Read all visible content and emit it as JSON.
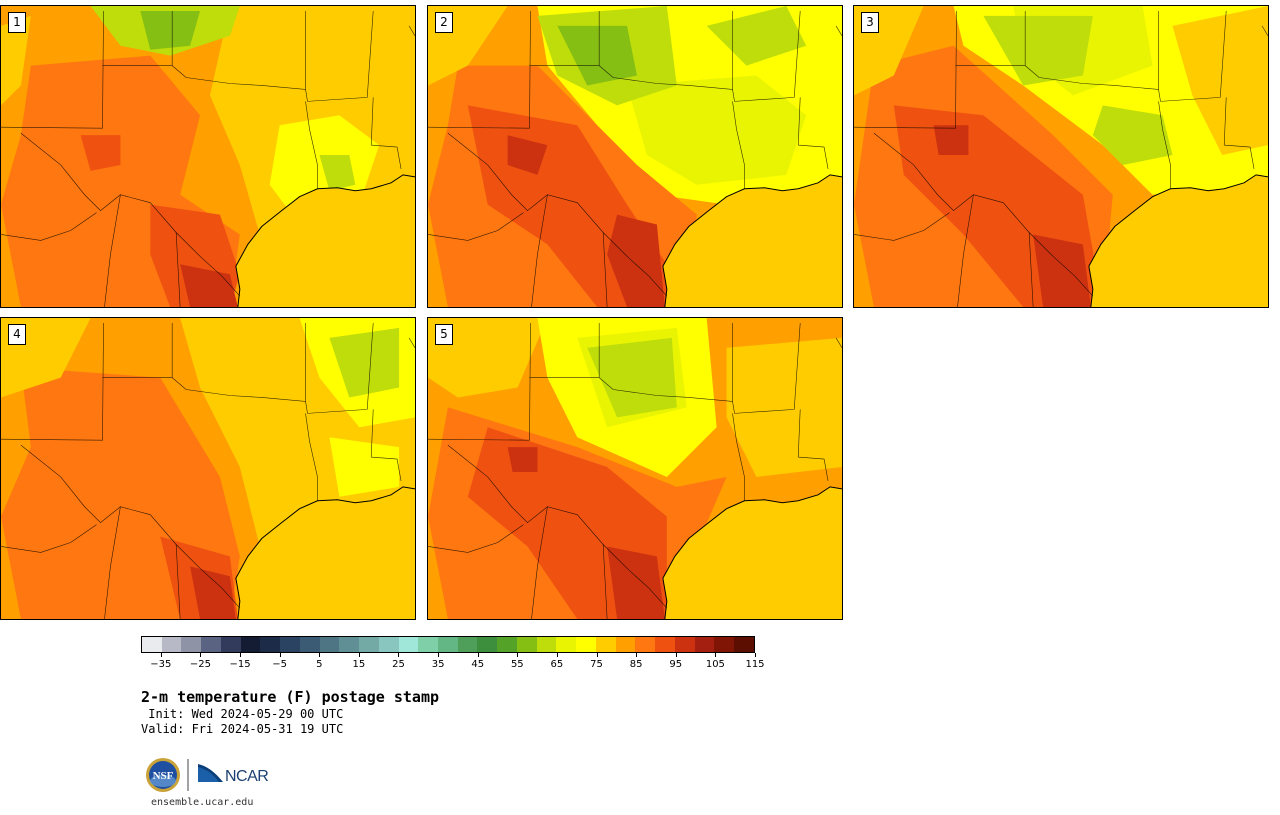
{
  "panels": [
    {
      "label": "1",
      "variant": 1
    },
    {
      "label": "2",
      "variant": 2
    },
    {
      "label": "3",
      "variant": 3
    },
    {
      "label": "4",
      "variant": 4
    },
    {
      "label": "5",
      "variant": 5
    }
  ],
  "colorbar": {
    "tick_labels": [
      "−35",
      "−25",
      "−15",
      "−5",
      "5",
      "15",
      "25",
      "35",
      "45",
      "55",
      "65",
      "75",
      "85",
      "95",
      "105",
      "115"
    ],
    "colors": [
      "#e9ebef",
      "#b7bac6",
      "#8f93a6",
      "#5b6382",
      "#323b5b",
      "#141c33",
      "#1c2b48",
      "#2a4362",
      "#3b5b74",
      "#4e7583",
      "#609096",
      "#74aaa6",
      "#88c6bf",
      "#a0e7da",
      "#7fd0a8",
      "#62b785",
      "#4f9e5a",
      "#3d8f3e",
      "#54a228",
      "#86bf14",
      "#bedd0a",
      "#e9f403",
      "#ffff00",
      "#ffcc00",
      "#ff9f00",
      "#ff7710",
      "#ef5210",
      "#cc3210",
      "#a51f10",
      "#801505",
      "#5c0f00"
    ],
    "tick_min": -35,
    "step_per_seg": 5
  },
  "title": "2-m temperature (F) postage stamp",
  "init": " Init: Wed 2024-05-29 00 UTC",
  "valid": "Valid: Fri 2024-05-31 19 UTC",
  "logos": {
    "nsf_text": "NSF",
    "ncar_text": "NCAR"
  },
  "url": "ensemble.ucar.edu",
  "map_palette": {
    "gulf": "#ffcc00",
    "hot1": "#ff9f00",
    "hot2": "#ff7710",
    "hot3": "#ef5210",
    "hot4": "#cc3210",
    "warm": "#ffcc00",
    "mild": "#ffff00",
    "cool1": "#e9f403",
    "cool2": "#bedd0a",
    "cool3": "#86bf14",
    "border": "#000000"
  }
}
